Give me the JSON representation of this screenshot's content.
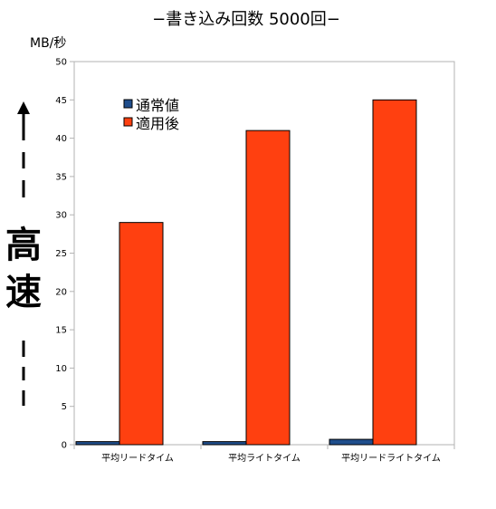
{
  "chart_data": {
    "type": "bar",
    "title": "−書き込み回数 5000回−",
    "ylabel": "MB/秒",
    "ylim": [
      0,
      50
    ],
    "yticks": [
      0,
      5,
      10,
      15,
      20,
      25,
      30,
      35,
      40,
      45,
      50
    ],
    "categories": [
      "平均リードタイム",
      "平均ライトタイム",
      "平均リードライトタイム"
    ],
    "series": [
      {
        "name": "通常値",
        "color": "#1f4e8c",
        "values": [
          0.4,
          0.4,
          0.7
        ]
      },
      {
        "name": "適用後",
        "color": "#ff4010",
        "values": [
          29,
          41,
          45
        ]
      }
    ],
    "grid": false,
    "legend": "top-left"
  },
  "annotation": {
    "speed_label_1": "高",
    "speed_label_2": "速"
  }
}
